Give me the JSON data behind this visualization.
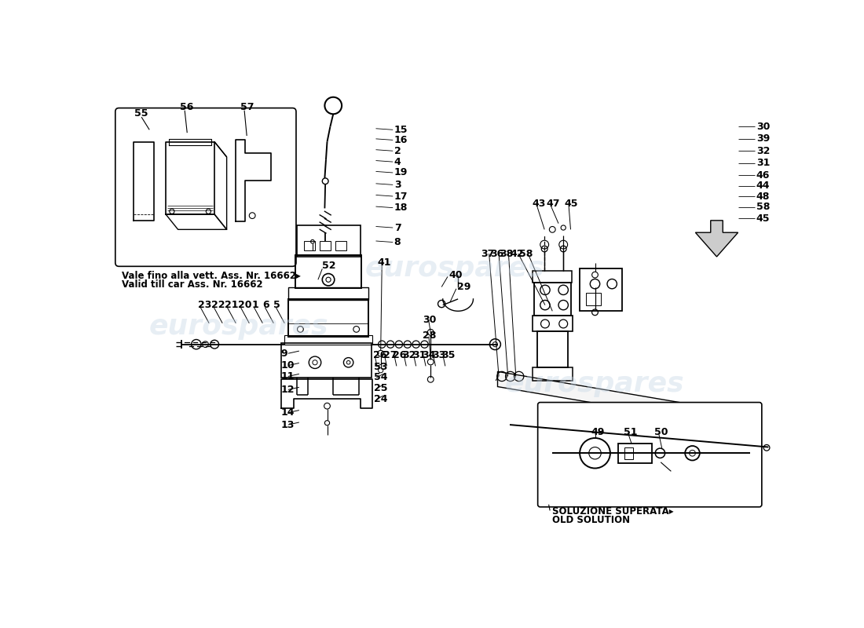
{
  "bg": "#ffffff",
  "lc": "#000000",
  "wm_color": "#c5d5e5",
  "wm_alpha": 0.4,
  "wm_text": "eurospares",
  "note_text1": "Vale fino alla vett. Ass. Nr. 16662▸",
  "note_text2": "Valid till car Ass. Nr. 16662",
  "old_sol1": "SOLUZIONE SUPERATA▸",
  "old_sol2": "OLD SOLUTION",
  "fs": 8.5,
  "fs_lbl": 9
}
